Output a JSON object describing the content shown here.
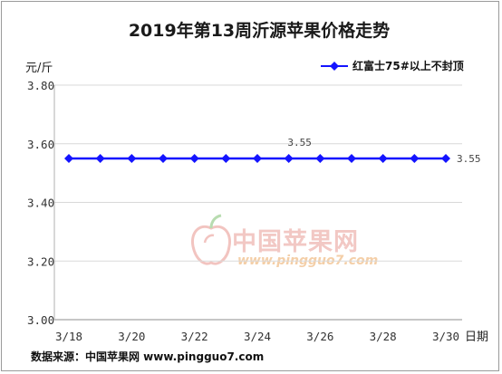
{
  "chart_data": {
    "type": "line",
    "title": "2019年第13周沂源苹果价格走势",
    "ylabel": "元/斤",
    "xlabel": "日期",
    "ylim": [
      3.0,
      3.8
    ],
    "yticks": [
      "3.00",
      "3.20",
      "3.40",
      "3.60",
      "3.80"
    ],
    "ytick_values": [
      3.0,
      3.2,
      3.4,
      3.6,
      3.8
    ],
    "x": [
      "3/18",
      "3/19",
      "3/20",
      "3/21",
      "3/22",
      "3/23",
      "3/24",
      "3/25",
      "3/26",
      "3/27",
      "3/28",
      "3/29",
      "3/30"
    ],
    "xtick_labels": [
      "3/18",
      "",
      "3/20",
      "",
      "3/22",
      "",
      "3/24",
      "",
      "3/26",
      "",
      "3/28",
      "",
      "3/30"
    ],
    "series": [
      {
        "name": "红富士75#以上不封顶",
        "values": [
          3.55,
          3.55,
          3.55,
          3.55,
          3.55,
          3.55,
          3.55,
          3.55,
          3.55,
          3.55,
          3.55,
          3.55,
          3.55
        ],
        "color": "#1414ff"
      }
    ],
    "data_labels": [
      {
        "index": 7,
        "text": "3.55"
      },
      {
        "index": 12,
        "text": "3.55"
      }
    ],
    "legend": "top-right",
    "grid": "horizontal"
  },
  "footer": {
    "source": "数据来源：中国苹果网 www.pingguo7.com"
  },
  "watermark": {
    "name": "中国苹果网",
    "url": "www.pingguo7.com"
  }
}
